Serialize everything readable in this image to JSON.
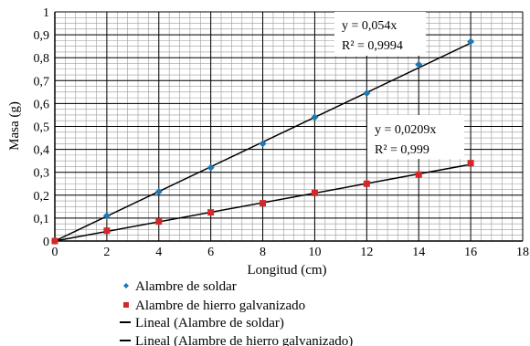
{
  "chart_data": {
    "type": "scatter",
    "xlabel": "Longitud (cm)",
    "ylabel": "Masa (g)",
    "xlim": [
      0,
      18
    ],
    "ylim": [
      0,
      1
    ],
    "x_ticks": [
      "0",
      "2",
      "4",
      "6",
      "8",
      "10",
      "12",
      "14",
      "16",
      "18"
    ],
    "y_ticks": [
      "0",
      "0,1",
      "0,2",
      "0,3",
      "0,4",
      "0,5",
      "0,6",
      "0,7",
      "0,8",
      "0,9",
      "1"
    ],
    "grid": "major and minor",
    "legend_position": "bottom",
    "series": [
      {
        "name": "Alambre de soldar",
        "marker": "diamond",
        "color": "#1f77b4",
        "x": [
          0,
          2,
          4,
          6,
          8,
          10,
          12,
          14,
          16
        ],
        "y": [
          0,
          0.11,
          0.215,
          0.32,
          0.425,
          0.54,
          0.645,
          0.77,
          0.87
        ]
      },
      {
        "name": "Alambre de hierro galvanizado",
        "marker": "square",
        "color": "#d62728",
        "x": [
          0,
          2,
          4,
          6,
          8,
          10,
          12,
          14,
          16
        ],
        "y": [
          0,
          0.045,
          0.085,
          0.125,
          0.165,
          0.21,
          0.25,
          0.29,
          0.34
        ]
      }
    ],
    "trendlines": [
      {
        "name": "Lineal (Alambre de soldar)",
        "slope": 0.054,
        "equation": "y = 0,054x",
        "r2_label": "R² = 0,9994"
      },
      {
        "name": "Lineal (Alambre de hierro galvanizado)",
        "slope": 0.0209,
        "equation": "y = 0,0209x",
        "r2_label": "R² = 0,999"
      }
    ]
  }
}
